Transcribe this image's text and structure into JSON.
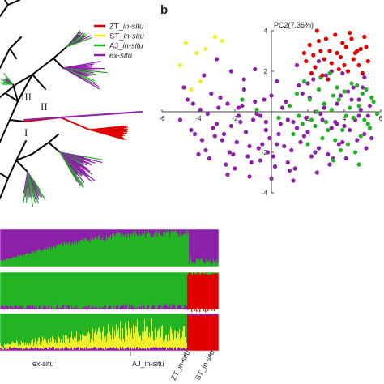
{
  "panel_b_label": "b",
  "tree": {
    "clade_labels": [
      "III",
      "II",
      "I"
    ],
    "legend": [
      {
        "prefix": "ZT_",
        "suffix": "in-situ",
        "color": "#e00000"
      },
      {
        "prefix": "ST_",
        "suffix": "in-situ",
        "color": "#f0ef2a"
      },
      {
        "prefix": "AJ_",
        "suffix": "in-situ",
        "color": "#22b422"
      },
      {
        "prefix": "",
        "suffix": "ex-situ",
        "color": "#8d20a8"
      }
    ]
  },
  "pca": {
    "pc2_label": "PC2(7.36%)",
    "x_ticks": [
      -6,
      -4,
      -2,
      2,
      4,
      6
    ],
    "y_ticks": [
      4,
      2,
      -2,
      -4
    ],
    "xlim": [
      -6,
      6
    ],
    "ylim": [
      -4,
      4
    ]
  },
  "structure": {
    "group_labels": [
      "ex-situ",
      "AJ_in-situ",
      "ZT_in-situ",
      "ST_in-situ"
    ]
  },
  "chart_data": {
    "type": "scatter",
    "xlim": [
      -6,
      6
    ],
    "ylim": [
      -4,
      4
    ],
    "ylabel": "PC2(7.36%)",
    "series": [
      {
        "name": "ZT_in-situ",
        "color": "#e00000",
        "x": [
          1.8,
          2.1,
          2.3,
          2.6,
          2.9,
          3.2,
          3.5,
          3.8,
          4.1,
          4.4,
          4.6,
          4.9,
          5.1,
          5.3,
          2.4,
          2.8,
          3.3,
          3.7,
          4.2,
          4.8,
          5.0,
          1.9,
          2.7,
          3.9,
          4.5,
          3.1,
          3.6,
          4.3,
          5.2,
          2.2,
          3.0,
          4.0,
          4.7,
          2.5
        ],
        "y": [
          2.9,
          3.3,
          2.8,
          3.5,
          2.6,
          3.0,
          3.8,
          2.7,
          3.2,
          3.6,
          2.9,
          3.1,
          3.7,
          2.5,
          2.2,
          1.8,
          2.4,
          2.1,
          2.0,
          2.3,
          1.9,
          2.5,
          3.0,
          3.4,
          2.6,
          1.6,
          2.9,
          3.9,
          3.2,
          1.9,
          3.6,
          2.3,
          3.0,
          4.0
        ]
      },
      {
        "name": "ST_in-situ",
        "color": "#f0ef2a",
        "x": [
          -4.7,
          -4.1,
          -3.6,
          -3.1,
          -2.7,
          -5.0,
          -4.4,
          -3.9
        ],
        "y": [
          3.4,
          2.9,
          3.1,
          3.7,
          3.5,
          2.3,
          1.1,
          1.5
        ]
      },
      {
        "name": "AJ_in-situ",
        "color": "#22b422",
        "x": [
          1.0,
          1.5,
          2.1,
          2.6,
          3.0,
          3.4,
          3.9,
          4.3,
          4.7,
          5.1,
          5.5,
          5.8,
          1.2,
          1.8,
          2.4,
          2.9,
          3.5,
          4.0,
          4.5,
          5.0,
          5.4,
          2.0,
          2.7,
          3.3,
          3.8,
          4.4,
          4.9,
          5.6,
          1.4,
          2.2,
          3.1,
          3.7,
          4.2,
          4.8,
          5.3,
          2.5,
          3.6,
          4.6,
          1.7,
          2.8,
          3.2,
          4.1,
          5.2,
          -0.8,
          -1.6,
          0.4,
          3.4,
          4.8
        ],
        "y": [
          0.3,
          -0.2,
          0.6,
          1.1,
          -0.5,
          0.8,
          -0.9,
          0.2,
          1.3,
          -0.4,
          0.7,
          -0.1,
          -1.1,
          1.5,
          -0.7,
          0.4,
          -1.4,
          1.0,
          -0.3,
          0.9,
          -0.8,
          -1.6,
          1.7,
          0.1,
          -1.9,
          1.4,
          -1.2,
          0.5,
          0.9,
          -0.4,
          -0.9,
          0.6,
          -1.6,
          0.3,
          -0.6,
          0.0,
          1.2,
          -2.0,
          -0.6,
          -1.3,
          1.9,
          -0.2,
          1.1,
          0.1,
          0.6,
          -0.3,
          -2.4,
          -2.6
        ]
      },
      {
        "name": "ex-situ",
        "color": "#8d20a8",
        "x": [
          -5.0,
          -4.6,
          -4.2,
          -3.9,
          -3.6,
          -3.3,
          -3.0,
          -2.7,
          -2.4,
          -2.1,
          -1.8,
          -1.5,
          -1.2,
          -0.9,
          -0.6,
          -0.3,
          0.0,
          0.3,
          0.6,
          0.9,
          1.2,
          1.5,
          1.8,
          2.1,
          2.4,
          2.7,
          3.0,
          3.3,
          3.6,
          3.9,
          4.2,
          4.5,
          4.8,
          5.1,
          5.4,
          -4.4,
          -4.0,
          -3.5,
          -3.1,
          -2.8,
          -2.5,
          -2.2,
          -1.9,
          -1.6,
          -1.3,
          -1.0,
          -0.7,
          -0.4,
          -0.1,
          0.2,
          0.5,
          0.8,
          1.1,
          1.4,
          1.7,
          2.0,
          2.3,
          2.6,
          2.9,
          3.2,
          3.5,
          3.8,
          4.1,
          4.4,
          4.7,
          5.0,
          5.3,
          -3.8,
          -3.2,
          -2.6,
          -2.0,
          -1.4,
          -0.8,
          -0.2,
          0.4,
          1.0,
          1.6,
          2.2,
          2.8,
          3.4,
          4.0,
          4.6,
          5.2,
          -3.4,
          -2.9,
          -2.3,
          -1.7,
          -1.1,
          -0.5,
          0.1,
          0.7,
          1.3,
          1.9,
          2.5,
          3.1,
          3.7,
          4.3,
          4.9,
          5.5,
          -4.8,
          -4.3,
          -3.7,
          -2.2,
          -1.5,
          -0.9,
          0.3,
          1.4,
          2.0,
          2.6,
          3.3,
          3.9,
          4.5,
          5.1,
          -1.8,
          -0.6,
          0.9,
          2.4,
          3.6,
          4.8,
          -2.4,
          -1.2,
          0.0,
          1.2,
          -0.3,
          -3.0
        ],
        "y": [
          -0.4,
          0.6,
          -1.1,
          0.1,
          -1.9,
          0.9,
          -0.6,
          -1.4,
          0.4,
          -2.1,
          -0.2,
          1.1,
          -1.7,
          0.5,
          -2.4,
          -0.9,
          0.8,
          -1.6,
          0.2,
          -2.5,
          -0.5,
          1.3,
          -1.2,
          0.7,
          -2.0,
          -0.1,
          1.8,
          -0.8,
          0.4,
          -1.5,
          1.0,
          -0.3,
          0.6,
          -1.1,
          0.3,
          -0.9,
          -2.1,
          -0.1,
          -1.2,
          0.7,
          -2.6,
          -0.7,
          -1.5,
          0.3,
          -2.2,
          -0.4,
          -1.8,
          0.6,
          -1.3,
          -2.7,
          -0.6,
          0.5,
          -1.9,
          -0.8,
          0.9,
          -1.0,
          1.6,
          -1.8,
          0.2,
          -2.6,
          -0.5,
          0.8,
          -2.3,
          0.6,
          -1.4,
          1.2,
          -0.2,
          -1.4,
          -0.8,
          -1.1,
          -2.8,
          -1.0,
          -0.1,
          -2.0,
          -1.1,
          -2.9,
          -1.5,
          -2.2,
          -0.4,
          -2.3,
          -0.7,
          -0.4,
          -1.8,
          -2.3,
          0.2,
          -2.0,
          -0.5,
          -2.5,
          -1.6,
          -2.2,
          -1.7,
          -2.8,
          -0.3,
          -3.0,
          -2.1,
          -1.6,
          -0.9,
          0.1,
          -1.3,
          1.2,
          0.4,
          1.8,
          2.0,
          1.6,
          2.1,
          1.5,
          2.3,
          1.4,
          2.5,
          2.0,
          1.9,
          1.2,
          1.7,
          0.2,
          -0.2,
          -0.4,
          0.0,
          -0.6,
          -0.2,
          -3.1,
          -3.2,
          -3.3,
          -3.4,
          -0.5,
          2.6
        ]
      }
    ]
  }
}
